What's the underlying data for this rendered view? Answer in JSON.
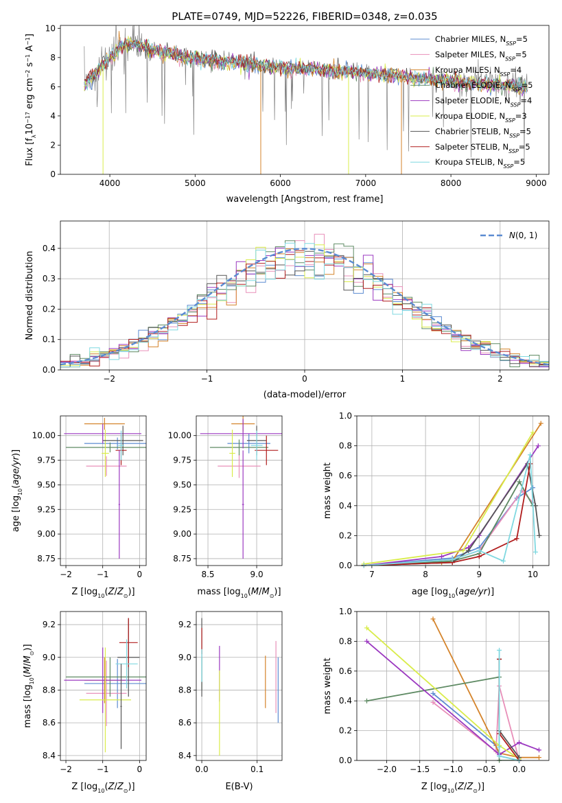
{
  "figure_title": "PLATE=0749, MJD=52226, FIBERID=0348, z=0.035",
  "colors": {
    "Chabrier MILES": "#5b8bd1",
    "Salpeter MILES": "#e88fb9",
    "Kroupa MILES": "#d4832a",
    "Chabrier ELODIE": "#5e8a63",
    "Salpeter ELODIE": "#9b38c0",
    "Kroupa ELODIE": "#d9ec4a",
    "Chabrier STELIB": "#555555",
    "Salpeter STELIB": "#b01c1c",
    "Kroupa STELIB": "#7fd8e0",
    "data": "#808080",
    "gaussian": "#5b8bd1"
  },
  "chart_data": [
    {
      "id": "spectrum",
      "type": "line",
      "xlabel": "wavelength [Angstrom, rest frame]",
      "ylabel": "Flux [f_λ 10^-17 erg cm^-2 s^-1 A^-1]",
      "xlim": [
        3420,
        9150
      ],
      "ylim": [
        0,
        10.2
      ],
      "xticks": [
        4000,
        5000,
        6000,
        7000,
        8000,
        9000
      ],
      "yticks": [
        0,
        2,
        4,
        6,
        8,
        10
      ],
      "legend": "upper right",
      "grid": false,
      "legend_entries": [
        {
          "name": "Chabrier MILES",
          "nssp": "5"
        },
        {
          "name": "Salpeter MILES",
          "nssp": "5"
        },
        {
          "name": "Kroupa MILES",
          "nssp": "4"
        },
        {
          "name": "Chabrier ELODIE",
          "nssp": "5"
        },
        {
          "name": "Salpeter ELODIE",
          "nssp": "4"
        },
        {
          "name": "Kroupa ELODIE",
          "nssp": "3"
        },
        {
          "name": "Chabrier STELIB",
          "nssp": "5"
        },
        {
          "name": "Salpeter STELIB",
          "nssp": "5"
        },
        {
          "name": "Kroupa STELIB",
          "nssp": "5"
        }
      ],
      "data_envelope": {
        "x": [
          3700,
          3800,
          3900,
          4000,
          4100,
          4200,
          4300,
          4500,
          4800,
          5000,
          5400,
          6000,
          6500,
          7000,
          7400,
          8000,
          8500,
          8900
        ],
        "y": [
          6.2,
          6.8,
          7.4,
          8.0,
          8.6,
          9.0,
          9.0,
          8.6,
          8.2,
          8.0,
          7.8,
          7.4,
          7.2,
          7.0,
          6.8,
          6.4,
          6.2,
          6.0
        ]
      },
      "model_drops": [
        {
          "x": 3920,
          "series": "Kroupa ELODIE"
        },
        {
          "x": 5770,
          "series": "Kroupa MILES"
        },
        {
          "x": 6800,
          "series": "Kroupa ELODIE"
        },
        {
          "x": 7420,
          "series": "Kroupa MILES"
        }
      ]
    },
    {
      "id": "residual_hist",
      "type": "step",
      "xlabel": "(data-model)/error",
      "ylabel": "Normed distribution",
      "xlim": [
        -2.5,
        2.5
      ],
      "ylim": [
        0,
        0.49
      ],
      "xticks": [
        -2,
        -1,
        0,
        1,
        2
      ],
      "yticks": [
        0.0,
        0.1,
        0.2,
        0.3,
        0.4
      ],
      "grid": true,
      "legend": "upper right",
      "gaussian_label": "N(0,1)"
    },
    {
      "id": "age_vs_Z",
      "type": "errorbar",
      "xlabel": "Z [log10(Z/Z⊙)]",
      "ylabel": "age  [log10(age/yr)]",
      "xlim": [
        -2.15,
        0.18
      ],
      "ylim": [
        8.68,
        10.2
      ],
      "xticks": [
        -2,
        -1,
        0
      ],
      "yticks": [
        8.75,
        9.0,
        9.25,
        9.5,
        9.75,
        10.0
      ],
      "grid": true,
      "points": [
        {
          "series": "Chabrier MILES",
          "x": -0.6,
          "xerr": 0.9,
          "y": 9.92,
          "yerr": 0.06
        },
        {
          "series": "Salpeter MILES",
          "x": -0.9,
          "xerr": 0.55,
          "y": 9.69,
          "yerr": 0.1
        },
        {
          "series": "Kroupa MILES",
          "x": -0.95,
          "xerr": 0.55,
          "y": 10.12,
          "yerr": 0.06
        },
        {
          "series": "Chabrier ELODIE",
          "x": -0.8,
          "xerr": 1.2,
          "y": 9.88,
          "yerr": 0.05
        },
        {
          "series": "Salpeter ELODIE",
          "x": -1.0,
          "xerr": 1.05,
          "y": 10.02,
          "yerr": 0.1
        },
        {
          "series": "Kroupa ELODIE",
          "x": -0.93,
          "xerr": 0.1,
          "y": 9.82,
          "yerr": 0.24
        },
        {
          "series": "Chabrier STELIB",
          "x": -0.45,
          "xerr": 0.55,
          "y": 9.95,
          "yerr": 0.15
        },
        {
          "series": "Salpeter STELIB",
          "x": -0.5,
          "xerr": 0.15,
          "y": 9.85,
          "yerr": 0.15
        },
        {
          "series": "Kroupa STELIB",
          "x": -0.5,
          "xerr": 0.08,
          "y": 9.9,
          "yerr": 0.15
        },
        {
          "series": "Salpeter ELODIE",
          "x": -0.55,
          "xerr": 0.02,
          "y": 9.3,
          "yerr": 0.55
        }
      ]
    },
    {
      "id": "age_vs_mass",
      "type": "errorbar",
      "xlabel": "mass [log10(M/M⊙)]",
      "ylabel": "",
      "xlim": [
        8.38,
        9.26
      ],
      "ylim": [
        8.68,
        10.2
      ],
      "xticks": [
        8.5,
        9.0
      ],
      "yticks": [
        8.75,
        9.0,
        9.25,
        9.5,
        9.75,
        10.0
      ],
      "grid": true,
      "points": [
        {
          "series": "Chabrier MILES",
          "x": 8.92,
          "xerr": 0.22,
          "y": 9.92,
          "yerr": 0.1
        },
        {
          "series": "Salpeter MILES",
          "x": 8.82,
          "xerr": 0.22,
          "y": 9.69,
          "yerr": 0.12
        },
        {
          "series": "Kroupa MILES",
          "x": 8.86,
          "xerr": 0.12,
          "y": 10.12,
          "yerr": 0.08
        },
        {
          "series": "Chabrier ELODIE",
          "x": 8.82,
          "xerr": 0.3,
          "y": 9.88,
          "yerr": 0.08
        },
        {
          "series": "Salpeter ELODIE",
          "x": 8.86,
          "xerr": 0.44,
          "y": 10.02,
          "yerr": 0.15
        },
        {
          "series": "Kroupa ELODIE",
          "x": 8.75,
          "xerr": 0.03,
          "y": 9.82,
          "yerr": 0.24
        },
        {
          "series": "Chabrier STELIB",
          "x": 9.0,
          "xerr": 0.1,
          "y": 9.95,
          "yerr": 0.15
        },
        {
          "series": "Salpeter STELIB",
          "x": 9.1,
          "xerr": 0.12,
          "y": 9.85,
          "yerr": 0.15
        },
        {
          "series": "Kroupa STELIB",
          "x": 9.0,
          "xerr": 0.06,
          "y": 9.9,
          "yerr": 0.15
        },
        {
          "series": "Salpeter ELODIE",
          "x": 8.86,
          "xerr": 0.01,
          "y": 9.3,
          "yerr": 0.55
        }
      ]
    },
    {
      "id": "massweight_vs_age",
      "type": "line",
      "xlabel": "age  [log10(age/yr)]",
      "ylabel": "mass weight",
      "xlim": [
        6.72,
        10.3
      ],
      "ylim": [
        0,
        1.0
      ],
      "xticks": [
        7,
        8,
        9,
        10
      ],
      "yticks": [
        0.0,
        0.2,
        0.4,
        0.6,
        0.8,
        1.0
      ],
      "grid": true,
      "series": [
        {
          "name": "Chabrier MILES",
          "x": [
            6.85,
            8.5,
            9.0,
            9.7,
            10.0
          ],
          "y": [
            0.0,
            0.05,
            0.12,
            0.45,
            0.52
          ]
        },
        {
          "name": "Salpeter MILES",
          "x": [
            6.85,
            8.5,
            9.0,
            9.8,
            10.0
          ],
          "y": [
            0.0,
            0.04,
            0.1,
            0.5,
            0.42
          ]
        },
        {
          "name": "Kroupa MILES",
          "x": [
            6.85,
            8.3,
            8.5,
            10.15
          ],
          "y": [
            0.0,
            0.02,
            0.03,
            0.95
          ]
        },
        {
          "name": "Chabrier ELODIE",
          "x": [
            6.85,
            8.5,
            9.0,
            9.75,
            10.0
          ],
          "y": [
            0.0,
            0.03,
            0.08,
            0.56,
            0.4
          ]
        },
        {
          "name": "Salpeter ELODIE",
          "x": [
            6.85,
            8.3,
            8.8,
            9.0,
            10.1
          ],
          "y": [
            0.0,
            0.06,
            0.12,
            0.2,
            0.8
          ]
        },
        {
          "name": "Kroupa ELODIE",
          "x": [
            6.85,
            8.7,
            10.0
          ],
          "y": [
            0.01,
            0.1,
            0.89
          ]
        },
        {
          "name": "Chabrier STELIB",
          "x": [
            6.85,
            8.5,
            8.8,
            9.9,
            10.05,
            10.12
          ],
          "y": [
            0.0,
            0.02,
            0.1,
            0.68,
            0.4,
            0.2
          ]
        },
        {
          "name": "Salpeter STELIB",
          "x": [
            6.85,
            8.5,
            9.0,
            9.7,
            9.95
          ],
          "y": [
            0.0,
            0.02,
            0.06,
            0.18,
            0.68
          ]
        },
        {
          "name": "Kroupa STELIB",
          "x": [
            6.85,
            8.5,
            9.0,
            9.45,
            9.95,
            10.05
          ],
          "y": [
            0.0,
            0.04,
            0.1,
            0.03,
            0.74,
            0.09
          ]
        }
      ]
    },
    {
      "id": "mass_vs_Z",
      "type": "errorbar",
      "xlabel": "Z [log10(Z/Z⊙)]",
      "ylabel": "mass [log10(M/M⊙)]",
      "xlim": [
        -2.15,
        0.18
      ],
      "ylim": [
        8.37,
        9.28
      ],
      "xticks": [
        -2,
        -1,
        0
      ],
      "yticks": [
        8.4,
        8.6,
        8.8,
        9.0,
        9.2
      ],
      "grid": true,
      "points": [
        {
          "series": "Chabrier MILES",
          "x": -0.6,
          "xerr": 0.9,
          "y": 8.84,
          "yerr": 0.15
        },
        {
          "series": "Salpeter MILES",
          "x": -0.9,
          "xerr": 0.55,
          "y": 8.78,
          "yerr": 0.2
        },
        {
          "series": "Kroupa MILES",
          "x": -0.95,
          "xerr": 0.55,
          "y": 8.86,
          "yerr": 0.14
        },
        {
          "series": "Chabrier ELODIE",
          "x": -0.8,
          "xerr": 1.2,
          "y": 8.88,
          "yerr": 0.12
        },
        {
          "series": "Salpeter ELODIE",
          "x": -1.0,
          "xerr": 1.05,
          "y": 8.86,
          "yerr": 0.2
        },
        {
          "series": "Kroupa ELODIE",
          "x": -0.93,
          "xerr": 0.7,
          "y": 8.74,
          "yerr": 0.32
        },
        {
          "series": "Chabrier STELIB",
          "x": -0.3,
          "xerr": 0.3,
          "y": 9.0,
          "yerr": 0.24
        },
        {
          "series": "Salpeter STELIB",
          "x": -0.3,
          "xerr": 0.25,
          "y": 9.09,
          "yerr": 0.15
        },
        {
          "series": "Kroupa STELIB",
          "x": -0.35,
          "xerr": 0.3,
          "y": 8.96,
          "yerr": 0.15
        },
        {
          "series": "Chabrier STELIB",
          "x": -0.5,
          "xerr": 0.02,
          "y": 8.7,
          "yerr": 0.26
        }
      ]
    },
    {
      "id": "mass_vs_ebv",
      "type": "errorbar",
      "xlabel": "E(B-V)",
      "ylabel": "",
      "xlim": [
        -0.01,
        0.145
      ],
      "ylim": [
        8.37,
        9.28
      ],
      "xticks": [
        0.0,
        0.1
      ],
      "yticks": [
        8.4,
        8.6,
        8.8,
        9.0,
        9.2
      ],
      "grid": true,
      "points": [
        {
          "series": "Chabrier MILES",
          "x": 0.138,
          "xerr": 0.0,
          "y": 8.8,
          "yerr": 0.2
        },
        {
          "series": "Salpeter MILES",
          "x": 0.134,
          "xerr": 0.0,
          "y": 8.88,
          "yerr": 0.22
        },
        {
          "series": "Kroupa MILES",
          "x": 0.115,
          "xerr": 0.0,
          "y": 8.85,
          "yerr": 0.16
        },
        {
          "series": "Chabrier ELODIE",
          "x": 0.0,
          "xerr": 0.0,
          "y": 8.9,
          "yerr": 0.1
        },
        {
          "series": "Salpeter ELODIE",
          "x": 0.032,
          "xerr": 0.0,
          "y": 8.9,
          "yerr": 0.17
        },
        {
          "series": "Kroupa ELODIE",
          "x": 0.032,
          "xerr": 0.0,
          "y": 8.66,
          "yerr": 0.26
        },
        {
          "series": "Chabrier STELIB",
          "x": 0.0,
          "xerr": 0.0,
          "y": 9.0,
          "yerr": 0.24
        },
        {
          "series": "Salpeter STELIB",
          "x": 0.0,
          "xerr": 0.0,
          "y": 9.1,
          "yerr": 0.08
        },
        {
          "series": "Kroupa STELIB",
          "x": 0.0,
          "xerr": 0.0,
          "y": 8.95,
          "yerr": 0.1
        }
      ]
    },
    {
      "id": "massweight_vs_Z",
      "type": "line",
      "xlabel": "Z [log10(Z/Z⊙)]",
      "ylabel": "mass weight",
      "xlim": [
        -2.45,
        0.45
      ],
      "ylim": [
        0,
        1.0
      ],
      "xticks": [
        -2.0,
        -1.5,
        -1.0,
        -0.5,
        0.0
      ],
      "yticks": [
        0.0,
        0.2,
        0.4,
        0.6,
        0.8,
        1.0
      ],
      "grid": true,
      "series": [
        {
          "name": "Chabrier MILES",
          "x": [
            -1.3,
            -0.35,
            -0.3,
            0.0
          ],
          "y": [
            0.45,
            0.1,
            0.03,
            0.0
          ]
        },
        {
          "name": "Salpeter MILES",
          "x": [
            -1.3,
            -0.35,
            -0.3,
            0.0
          ],
          "y": [
            0.39,
            0.06,
            0.5,
            0.0
          ]
        },
        {
          "name": "Kroupa MILES",
          "x": [
            -1.3,
            -0.3,
            0.0,
            0.3
          ],
          "y": [
            0.95,
            0.05,
            0.02,
            0.02
          ]
        },
        {
          "name": "Chabrier ELODIE",
          "x": [
            -2.3,
            -0.3,
            -0.3,
            0.0
          ],
          "y": [
            0.4,
            0.56,
            0.0,
            0.0
          ]
        },
        {
          "name": "Salpeter ELODIE",
          "x": [
            -2.3,
            -0.3,
            0.0,
            0.3
          ],
          "y": [
            0.8,
            0.04,
            0.12,
            0.07
          ]
        },
        {
          "name": "Kroupa ELODIE",
          "x": [
            -2.3,
            -0.3,
            0.0
          ],
          "y": [
            0.89,
            0.1,
            0.01
          ]
        },
        {
          "name": "Chabrier STELIB",
          "x": [
            -0.3,
            -0.3,
            0.0,
            0.0
          ],
          "y": [
            0.68,
            0.2,
            0.02,
            0.0
          ]
        },
        {
          "name": "Salpeter STELIB",
          "x": [
            -0.3,
            -0.3,
            0.0
          ],
          "y": [
            0.68,
            0.18,
            0.0
          ]
        },
        {
          "name": "Kroupa STELIB",
          "x": [
            -0.3,
            -0.3,
            -0.3,
            0.0
          ],
          "y": [
            0.74,
            0.09,
            0.03,
            0.0
          ]
        }
      ]
    }
  ]
}
